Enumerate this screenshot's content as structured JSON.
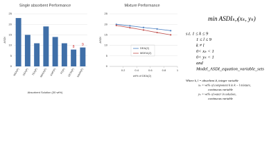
{
  "chart_data": [
    {
      "type": "bar",
      "title": "Single absorbent Performance",
      "y_label": "ASDI",
      "x_label": "Absorbent Solution (30 wt%)",
      "categories": [
        "MEA(P)",
        "DEA(P)",
        "TEA(P)",
        "MDEA(P)",
        "AMP(P)",
        "PZ(P)",
        "DETA(P)",
        "MAPA(P)"
      ],
      "values": [
        23,
        15,
        11,
        19,
        14,
        11,
        8,
        9
      ],
      "value_labels": [
        null,
        null,
        null,
        null,
        null,
        null,
        "8",
        "9"
      ],
      "color": "#3f6fa8",
      "label_color": "#d03030",
      "ylim": [
        0,
        25
      ],
      "yticks": [
        0,
        5,
        10,
        15,
        20,
        25
      ],
      "grid": true
    },
    {
      "type": "line",
      "title": "Mixture Performance",
      "y_label": "ASDI",
      "x_label": "wt% of DEA(2)",
      "x": [
        0.1,
        0.3,
        0.5,
        0.7,
        0.9
      ],
      "series": [
        {
          "name": "DEA(2)",
          "color": "#4a7fc1",
          "values": [
            20,
            19.3,
            18.5,
            17.8,
            17
          ]
        },
        {
          "name": "MDEA(2)",
          "color": "#c0504d",
          "values": [
            19.5,
            18.4,
            17.3,
            16.1,
            15
          ]
        }
      ],
      "xlim": [
        0,
        1
      ],
      "xticks": [
        0.2,
        0.4,
        0.6,
        0.8,
        1
      ],
      "ylim": [
        0,
        25
      ],
      "yticks": [
        0,
        5,
        10,
        15,
        20,
        25
      ],
      "grid": true
    }
  ],
  "formulation": {
    "objective": "min ASDIₖ,ₗ(xₖ, yₖ)",
    "constraints": [
      "s.t. 1 ≤ k ≤ 9",
      "1 ≤ l ≤ 9",
      "k ≠ l",
      "0< xₖ < 1",
      "0< yₖ < 1",
      "and",
      "Model_ASDI_equation_variable_sets"
    ],
    "where": [
      "Where k, l = absorbent #, integer variable",
      "xₖ = wt% of component k in k − l mixture,",
      "continuous variable",
      "yₖ = wt% of water in solution,",
      "continuous variable"
    ]
  }
}
